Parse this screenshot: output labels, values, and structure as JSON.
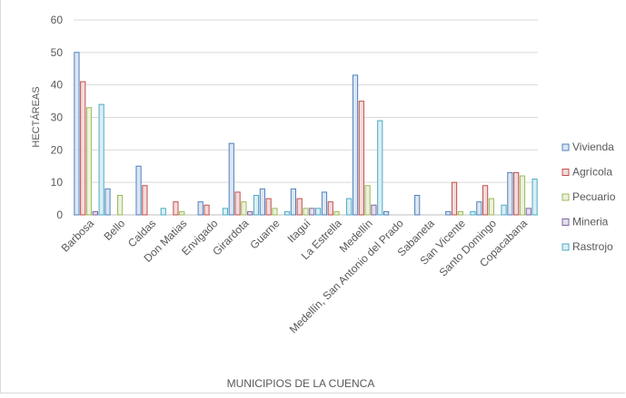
{
  "chart_data": {
    "type": "bar",
    "xlabel": "MUNICIPIOS DE LA CUENCA",
    "ylabel": "HECTÁREAS",
    "ylim": [
      0,
      60
    ],
    "yticks": [
      0,
      10,
      20,
      30,
      40,
      50,
      60
    ],
    "grid": true,
    "legend_position": "right",
    "categories": [
      "Barbosa",
      "Bello",
      "Caldas",
      "Don Matias",
      "Envigado",
      "Girardota",
      "Guarne",
      "Itaguí",
      "La Estrella",
      "Medellín",
      "Medellín, San Antonio del Prado",
      "Sabaneta",
      "San Vicente",
      "Santo Domingo",
      "Copacabana"
    ],
    "series": [
      {
        "name": "Vivienda",
        "color": "#4f81bd",
        "fill": "#dce6f2",
        "values": [
          50,
          8,
          15,
          0,
          4,
          22,
          8,
          8,
          7,
          43,
          1,
          6,
          1,
          4,
          13
        ]
      },
      {
        "name": "Agrícola",
        "color": "#c0504d",
        "fill": "#f2dcdb",
        "values": [
          41,
          0,
          9,
          4,
          3,
          7,
          5,
          5,
          4,
          35,
          0,
          0,
          10,
          9,
          13
        ]
      },
      {
        "name": "Pecuario",
        "color": "#9bbb59",
        "fill": "#ebf1de",
        "values": [
          33,
          6,
          0,
          1,
          0,
          4,
          2,
          2,
          1,
          9,
          0,
          0,
          1,
          5,
          12
        ]
      },
      {
        "name": "Mineria",
        "color": "#8064a2",
        "fill": "#e4dfec",
        "values": [
          1,
          0,
          0,
          0,
          0,
          1,
          0,
          2,
          0,
          3,
          0,
          0,
          0,
          0,
          2
        ]
      },
      {
        "name": "Rastrojo",
        "color": "#4bacc6",
        "fill": "#dbeef4",
        "values": [
          34,
          0,
          2,
          0,
          2,
          6,
          1,
          2,
          5,
          29,
          0,
          0,
          1,
          3,
          11
        ]
      }
    ]
  }
}
